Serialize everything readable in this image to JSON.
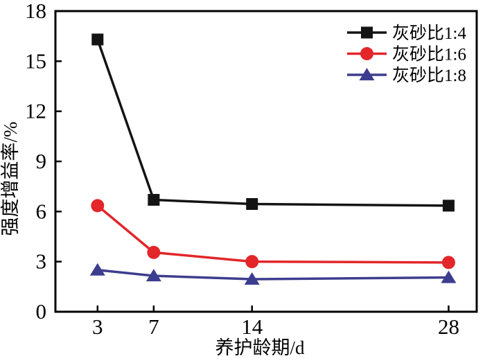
{
  "figure": {
    "background": "#ffffff"
  },
  "chart_data": {
    "type": "line",
    "title": "",
    "xlabel": "养护龄期/d",
    "ylabel": "强度增益率/%",
    "x": [
      3,
      7,
      14,
      28
    ],
    "series": [
      {
        "name": "灰砂比1:4",
        "color": "#141414",
        "marker": "square",
        "values": [
          16.3,
          6.7,
          6.45,
          6.35
        ]
      },
      {
        "name": "灰砂比1:6",
        "color": "#e2262a",
        "marker": "circle",
        "values": [
          6.35,
          3.55,
          3.0,
          2.95
        ]
      },
      {
        "name": "灰砂比1:8",
        "color": "#3d3d8f",
        "marker": "triangle",
        "values": [
          2.5,
          2.15,
          1.95,
          2.05
        ]
      }
    ],
    "xlim": [
      0,
      30
    ],
    "ylim": [
      0,
      18
    ],
    "xticks": [
      3,
      7,
      14,
      28
    ],
    "yticks": [
      0,
      3,
      6,
      9,
      12,
      15,
      18
    ],
    "grid": false,
    "legend_position": "top-right",
    "axis_color": "#000000"
  }
}
